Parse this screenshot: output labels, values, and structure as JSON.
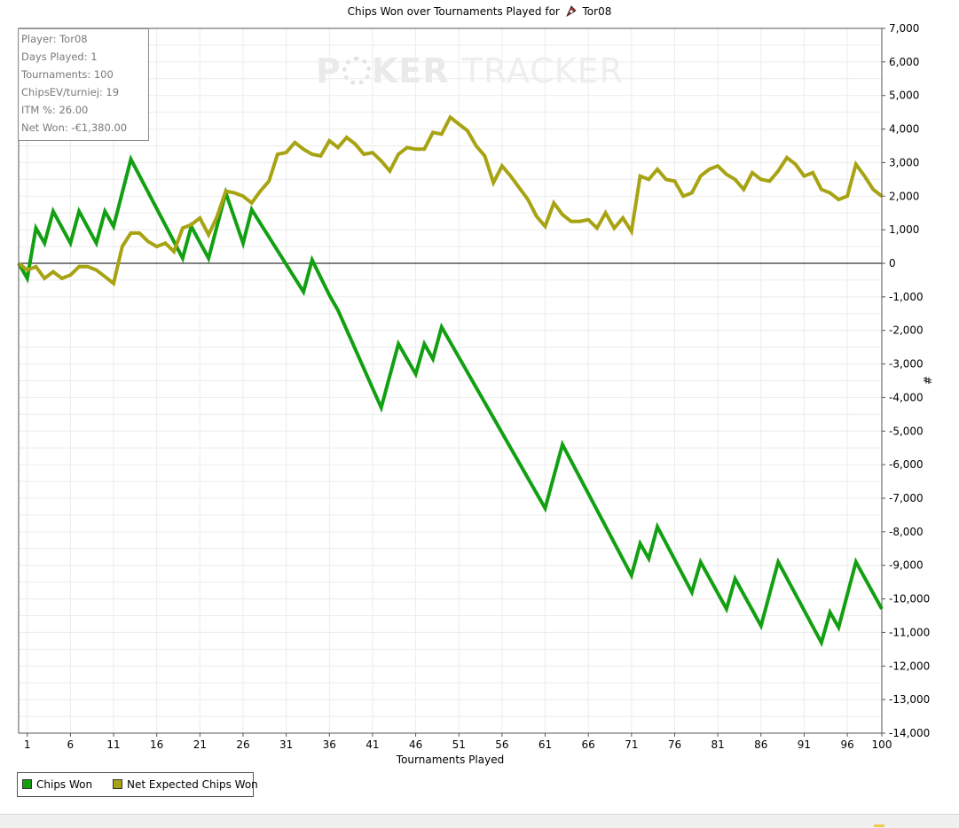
{
  "title": {
    "prefix": "Chips Won over Tournaments Played for",
    "player": "Tor08",
    "icon": "pokerstars-logo-icon"
  },
  "info": {
    "player": "Player: Tor08",
    "days": "Days Played: 1",
    "tournaments": "Tournaments: 100",
    "chipsev": "ChipsEV/turniej: 19",
    "itm": "ITM %: 26.00",
    "netwon": "Net Won: -€1,380.00"
  },
  "watermark": {
    "left": "P",
    "right": "KER",
    "tracker": "TRACKER"
  },
  "legend": {
    "chips_won": "Chips Won",
    "net_expected": "Net Expected Chips Won"
  },
  "colors": {
    "chips_won": "#12a012",
    "net_expected": "#a8a313",
    "grid": "#ececec",
    "zero_line": "#000000"
  },
  "chart_data": {
    "type": "line",
    "xlabel": "Tournaments Played",
    "ylabel": "#",
    "xlim": [
      0,
      100
    ],
    "ylim": [
      -14000,
      7000
    ],
    "grid": true,
    "legend_position": "bottom-left",
    "x_ticks": [
      1,
      6,
      11,
      16,
      21,
      26,
      31,
      36,
      41,
      46,
      51,
      56,
      61,
      66,
      71,
      76,
      81,
      86,
      91,
      96,
      100
    ],
    "y_ticks": [
      7000,
      6000,
      5000,
      4000,
      3000,
      2000,
      1000,
      0,
      -1000,
      -2000,
      -3000,
      -4000,
      -5000,
      -6000,
      -7000,
      -8000,
      -9000,
      -10000,
      -11000,
      -12000,
      -13000,
      -14000
    ],
    "y_tick_labels": [
      "7,000",
      "6,000",
      "5,000",
      "4,000",
      "3,000",
      "2,000",
      "1,000",
      "0",
      "-1,000",
      "-2,000",
      "-3,000",
      "-4,000",
      "-5,000",
      "-6,000",
      "-7,000",
      "-8,000",
      "-9,000",
      "-10,000",
      "-11,000",
      "-12,000",
      "-13,000",
      "-14,000"
    ],
    "series": [
      {
        "name": "Chips Won",
        "color": "#12a012",
        "points": [
          [
            0,
            0
          ],
          [
            1,
            -450
          ],
          [
            2,
            1050
          ],
          [
            3,
            600
          ],
          [
            4,
            1550
          ],
          [
            6,
            600
          ],
          [
            7,
            1550
          ],
          [
            9,
            600
          ],
          [
            10,
            1550
          ],
          [
            11,
            1100
          ],
          [
            13,
            3100
          ],
          [
            19,
            150
          ],
          [
            20,
            1100
          ],
          [
            22,
            150
          ],
          [
            24,
            2100
          ],
          [
            26,
            600
          ],
          [
            27,
            1600
          ],
          [
            33,
            -850
          ],
          [
            34,
            100
          ],
          [
            36,
            -950
          ],
          [
            37,
            -1400
          ],
          [
            42,
            -4300
          ],
          [
            44,
            -2400
          ],
          [
            46,
            -3300
          ],
          [
            47,
            -2400
          ],
          [
            48,
            -2850
          ],
          [
            49,
            -1900
          ],
          [
            61,
            -7300
          ],
          [
            63,
            -5400
          ],
          [
            71,
            -9300
          ],
          [
            72,
            -8350
          ],
          [
            73,
            -8800
          ],
          [
            74,
            -7850
          ],
          [
            78,
            -9800
          ],
          [
            79,
            -8900
          ],
          [
            82,
            -10300
          ],
          [
            83,
            -9400
          ],
          [
            86,
            -10800
          ],
          [
            88,
            -8900
          ],
          [
            93,
            -11300
          ],
          [
            94,
            -10400
          ],
          [
            95,
            -10850
          ],
          [
            97,
            -8900
          ],
          [
            100,
            -10300
          ]
        ]
      },
      {
        "name": "Net Expected Chips Won",
        "color": "#a8a313",
        "points": [
          [
            0,
            0
          ],
          [
            1,
            -200
          ],
          [
            2,
            -100
          ],
          [
            3,
            -450
          ],
          [
            4,
            -250
          ],
          [
            5,
            -450
          ],
          [
            6,
            -350
          ],
          [
            7,
            -100
          ],
          [
            8,
            -100
          ],
          [
            9,
            -200
          ],
          [
            10,
            -400
          ],
          [
            11,
            -600
          ],
          [
            12,
            500
          ],
          [
            13,
            900
          ],
          [
            14,
            900
          ],
          [
            15,
            650
          ],
          [
            16,
            500
          ],
          [
            17,
            600
          ],
          [
            18,
            350
          ],
          [
            19,
            1050
          ],
          [
            20,
            1150
          ],
          [
            21,
            1350
          ],
          [
            22,
            850
          ],
          [
            23,
            1400
          ],
          [
            24,
            2150
          ],
          [
            25,
            2100
          ],
          [
            26,
            2000
          ],
          [
            27,
            1800
          ],
          [
            28,
            2150
          ],
          [
            29,
            2450
          ],
          [
            30,
            3250
          ],
          [
            31,
            3300
          ],
          [
            32,
            3600
          ],
          [
            33,
            3400
          ],
          [
            34,
            3250
          ],
          [
            35,
            3200
          ],
          [
            36,
            3650
          ],
          [
            37,
            3450
          ],
          [
            38,
            3750
          ],
          [
            39,
            3550
          ],
          [
            40,
            3250
          ],
          [
            41,
            3300
          ],
          [
            42,
            3050
          ],
          [
            43,
            2750
          ],
          [
            44,
            3250
          ],
          [
            45,
            3450
          ],
          [
            46,
            3400
          ],
          [
            47,
            3400
          ],
          [
            48,
            3900
          ],
          [
            49,
            3850
          ],
          [
            50,
            4350
          ],
          [
            51,
            4150
          ],
          [
            52,
            3950
          ],
          [
            53,
            3500
          ],
          [
            54,
            3200
          ],
          [
            55,
            2400
          ],
          [
            56,
            2900
          ],
          [
            57,
            2600
          ],
          [
            58,
            2250
          ],
          [
            59,
            1900
          ],
          [
            60,
            1400
          ],
          [
            61,
            1100
          ],
          [
            62,
            1800
          ],
          [
            63,
            1450
          ],
          [
            64,
            1250
          ],
          [
            65,
            1250
          ],
          [
            66,
            1300
          ],
          [
            67,
            1050
          ],
          [
            68,
            1500
          ],
          [
            69,
            1050
          ],
          [
            70,
            1350
          ],
          [
            71,
            950
          ],
          [
            72,
            2600
          ],
          [
            73,
            2500
          ],
          [
            74,
            2800
          ],
          [
            75,
            2500
          ],
          [
            76,
            2450
          ],
          [
            77,
            2000
          ],
          [
            78,
            2100
          ],
          [
            79,
            2600
          ],
          [
            80,
            2800
          ],
          [
            81,
            2900
          ],
          [
            82,
            2650
          ],
          [
            83,
            2500
          ],
          [
            84,
            2200
          ],
          [
            85,
            2700
          ],
          [
            86,
            2500
          ],
          [
            87,
            2450
          ],
          [
            88,
            2750
          ],
          [
            89,
            3150
          ],
          [
            90,
            2950
          ],
          [
            91,
            2600
          ],
          [
            92,
            2700
          ],
          [
            93,
            2200
          ],
          [
            94,
            2100
          ],
          [
            95,
            1900
          ],
          [
            96,
            2000
          ],
          [
            97,
            2950
          ],
          [
            98,
            2600
          ],
          [
            99,
            2200
          ],
          [
            100,
            2000
          ]
        ]
      }
    ]
  }
}
